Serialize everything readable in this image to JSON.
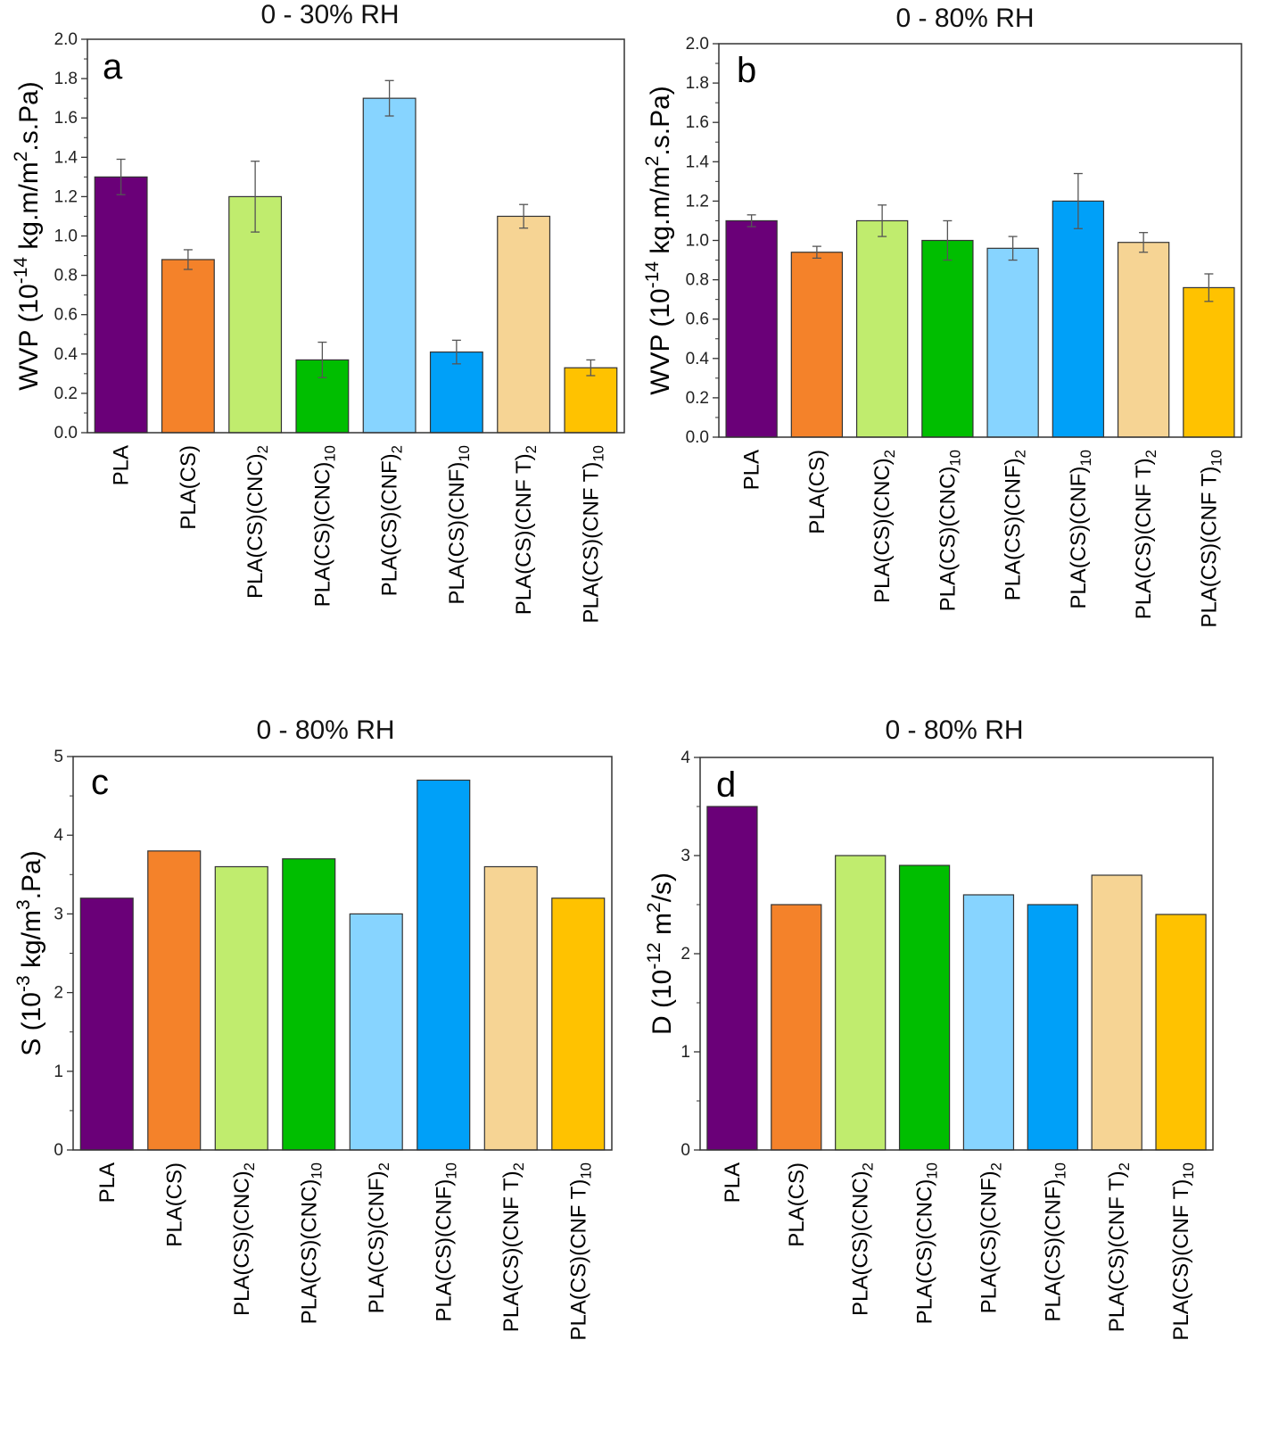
{
  "colors": {
    "purple": "#6a0078",
    "orange": "#f4822a",
    "lightgreen": "#c0ec6e",
    "green": "#00be00",
    "lightblue": "#87d4ff",
    "blue": "#00a0f8",
    "tan": "#f6d494",
    "gold": "#ffc200"
  },
  "chart_data": [
    {
      "id": "a",
      "type": "bar",
      "letter": "a",
      "title": "0 - 30% RH",
      "ylabel": {
        "main": "WVP (10",
        "sup1": "-14",
        "mid": " kg.m/m",
        "sup2": "2",
        "tail": ".s.Pa)"
      },
      "ylim": [
        0,
        2.0
      ],
      "yticks": [
        "0.0",
        "0.2",
        "0.4",
        "0.6",
        "0.8",
        "1.0",
        "1.2",
        "1.4",
        "1.6",
        "1.8",
        "2.0"
      ],
      "categories": [
        {
          "base": "PLA",
          "sub": ""
        },
        {
          "base": "PLA(CS)",
          "sub": ""
        },
        {
          "base": "PLA(CS)(CNC)",
          "sub": "2"
        },
        {
          "base": "PLA(CS)(CNC)",
          "sub": "10"
        },
        {
          "base": "PLA(CS)(CNF)",
          "sub": "2"
        },
        {
          "base": "PLA(CS)(CNF)",
          "sub": "10"
        },
        {
          "base": "PLA(CS)(CNF T)",
          "sub": "2"
        },
        {
          "base": "PLA(CS)(CNF T)",
          "sub": "10"
        }
      ],
      "values": [
        1.3,
        0.88,
        1.2,
        0.37,
        1.7,
        0.41,
        1.1,
        0.33
      ],
      "errors": [
        0.09,
        0.05,
        0.18,
        0.09,
        0.09,
        0.06,
        0.06,
        0.04
      ],
      "colors": [
        "purple",
        "orange",
        "lightgreen",
        "green",
        "lightblue",
        "blue",
        "tan",
        "gold"
      ]
    },
    {
      "id": "b",
      "type": "bar",
      "letter": "b",
      "title": "0 - 80% RH",
      "ylabel": {
        "main": "WVP (10",
        "sup1": "-14",
        "mid": " kg.m/m",
        "sup2": "2",
        "tail": ".s.Pa)"
      },
      "ylim": [
        0,
        2.0
      ],
      "yticks": [
        "0.0",
        "0.2",
        "0.4",
        "0.6",
        "0.8",
        "1.0",
        "1.2",
        "1.4",
        "1.6",
        "1.8",
        "2.0"
      ],
      "categories": [
        {
          "base": "PLA",
          "sub": ""
        },
        {
          "base": "PLA(CS)",
          "sub": ""
        },
        {
          "base": "PLA(CS)(CNC)",
          "sub": "2"
        },
        {
          "base": "PLA(CS)(CNC)",
          "sub": "10"
        },
        {
          "base": "PLA(CS)(CNF)",
          "sub": "2"
        },
        {
          "base": "PLA(CS)(CNF)",
          "sub": "10"
        },
        {
          "base": "PLA(CS)(CNF T)",
          "sub": "2"
        },
        {
          "base": "PLA(CS)(CNF T)",
          "sub": "10"
        }
      ],
      "values": [
        1.1,
        0.94,
        1.1,
        1.0,
        0.96,
        1.2,
        0.99,
        0.76
      ],
      "errors": [
        0.03,
        0.03,
        0.08,
        0.1,
        0.06,
        0.14,
        0.05,
        0.07
      ],
      "colors": [
        "purple",
        "orange",
        "lightgreen",
        "green",
        "lightblue",
        "blue",
        "tan",
        "gold"
      ]
    },
    {
      "id": "c",
      "type": "bar",
      "letter": "c",
      "title": "0 - 80% RH",
      "ylabel": {
        "main": "S (10",
        "sup1": "-3",
        "mid": " kg/m",
        "sup2": "3",
        "tail": ".Pa)"
      },
      "ylim": [
        0,
        5
      ],
      "yticks": [
        "0",
        "1",
        "2",
        "3",
        "4",
        "5"
      ],
      "categories": [
        {
          "base": "PLA",
          "sub": ""
        },
        {
          "base": "PLA(CS)",
          "sub": ""
        },
        {
          "base": "PLA(CS)(CNC)",
          "sub": "2"
        },
        {
          "base": "PLA(CS)(CNC)",
          "sub": "10"
        },
        {
          "base": "PLA(CS)(CNF)",
          "sub": "2"
        },
        {
          "base": "PLA(CS)(CNF)",
          "sub": "10"
        },
        {
          "base": "PLA(CS)(CNF T)",
          "sub": "2"
        },
        {
          "base": "PLA(CS)(CNF T)",
          "sub": "10"
        }
      ],
      "values": [
        3.2,
        3.8,
        3.6,
        3.7,
        3.0,
        4.7,
        3.6,
        3.2
      ],
      "errors": [],
      "colors": [
        "purple",
        "orange",
        "lightgreen",
        "green",
        "lightblue",
        "blue",
        "tan",
        "gold"
      ]
    },
    {
      "id": "d",
      "type": "bar",
      "letter": "d",
      "title": "0 - 80% RH",
      "ylabel": {
        "main": "D (10",
        "sup1": "-12",
        "mid": " m",
        "sup2": "2",
        "tail": "/s)"
      },
      "ylim": [
        0,
        4
      ],
      "yticks": [
        "0",
        "1",
        "2",
        "3",
        "4"
      ],
      "categories": [
        {
          "base": "PLA",
          "sub": ""
        },
        {
          "base": "PLA(CS)",
          "sub": ""
        },
        {
          "base": "PLA(CS)(CNC)",
          "sub": "2"
        },
        {
          "base": "PLA(CS)(CNC)",
          "sub": "10"
        },
        {
          "base": "PLA(CS)(CNF)",
          "sub": "2"
        },
        {
          "base": "PLA(CS)(CNF)",
          "sub": "10"
        },
        {
          "base": "PLA(CS)(CNF T)",
          "sub": "2"
        },
        {
          "base": "PLA(CS)(CNF T)",
          "sub": "10"
        }
      ],
      "values": [
        3.5,
        2.5,
        3.0,
        2.9,
        2.6,
        2.5,
        2.8,
        2.4
      ],
      "errors": [],
      "colors": [
        "purple",
        "lightorange",
        "lightgreen",
        "green",
        "lightblue",
        "blue",
        "tan",
        "gold"
      ]
    }
  ]
}
